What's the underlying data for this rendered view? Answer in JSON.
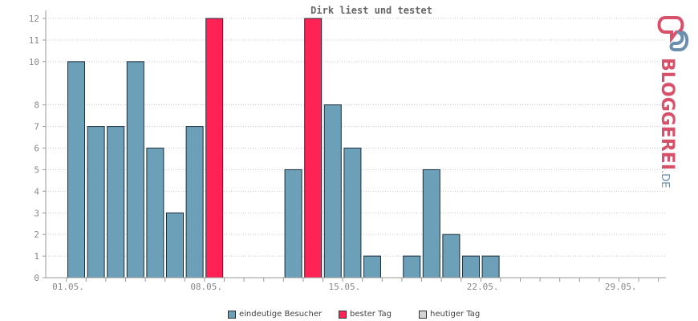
{
  "chart_data": {
    "type": "bar",
    "title": "Dirk liest und testet",
    "ylim": [
      0,
      12
    ],
    "yticks": [
      "0",
      "1",
      "2",
      "3",
      "4",
      "5",
      "6",
      "7",
      "8",
      "10",
      "11",
      "12"
    ],
    "xtick_labels": [
      "01.05.",
      "08.05.",
      "15.05.",
      "22.05.",
      "29.05."
    ],
    "days": [
      "01.05.",
      "02.05.",
      "03.05.",
      "04.05.",
      "05.05.",
      "06.05.",
      "07.05.",
      "08.05.",
      "09.05.",
      "10.05.",
      "11.05.",
      "12.05.",
      "13.05.",
      "14.05.",
      "15.05.",
      "16.05.",
      "17.05.",
      "18.05.",
      "19.05.",
      "20.05.",
      "21.05.",
      "22.05.",
      "23.05.",
      "24.05.",
      "25.05.",
      "26.05.",
      "27.05.",
      "28.05.",
      "29.05.",
      "30.05.",
      "31.05."
    ],
    "series": [
      {
        "name": "eindeutige Besucher",
        "color": "#6ca0b8",
        "values": [
          10,
          7,
          7,
          10,
          6,
          3,
          7,
          0,
          0,
          0,
          0,
          5,
          0,
          8,
          6,
          1,
          0,
          1,
          5,
          2,
          1,
          1,
          0,
          0,
          0,
          0,
          0,
          0,
          0,
          0,
          0
        ]
      },
      {
        "name": "bester Tag",
        "color": "#ff2255",
        "values": [
          0,
          0,
          0,
          0,
          0,
          0,
          0,
          12,
          0,
          0,
          0,
          0,
          12,
          0,
          0,
          0,
          0,
          0,
          0,
          0,
          0,
          0,
          0,
          0,
          0,
          0,
          0,
          0,
          0,
          0,
          0
        ]
      },
      {
        "name": "heutiger Tag",
        "color": "#d4d4d4",
        "values": [
          0,
          0,
          0,
          0,
          0,
          0,
          0,
          0,
          0,
          0,
          0,
          0,
          0,
          0,
          0,
          0,
          0,
          0,
          0,
          0,
          0,
          0,
          0,
          0,
          0,
          0,
          0,
          0,
          0,
          0,
          0
        ]
      }
    ],
    "grid": true,
    "legend_position": "bottom"
  },
  "logo": {
    "text": "BLOGGEREI",
    "suffix": ".DE",
    "primary_color": "#d9506a",
    "secondary_color": "#6a8fae"
  }
}
